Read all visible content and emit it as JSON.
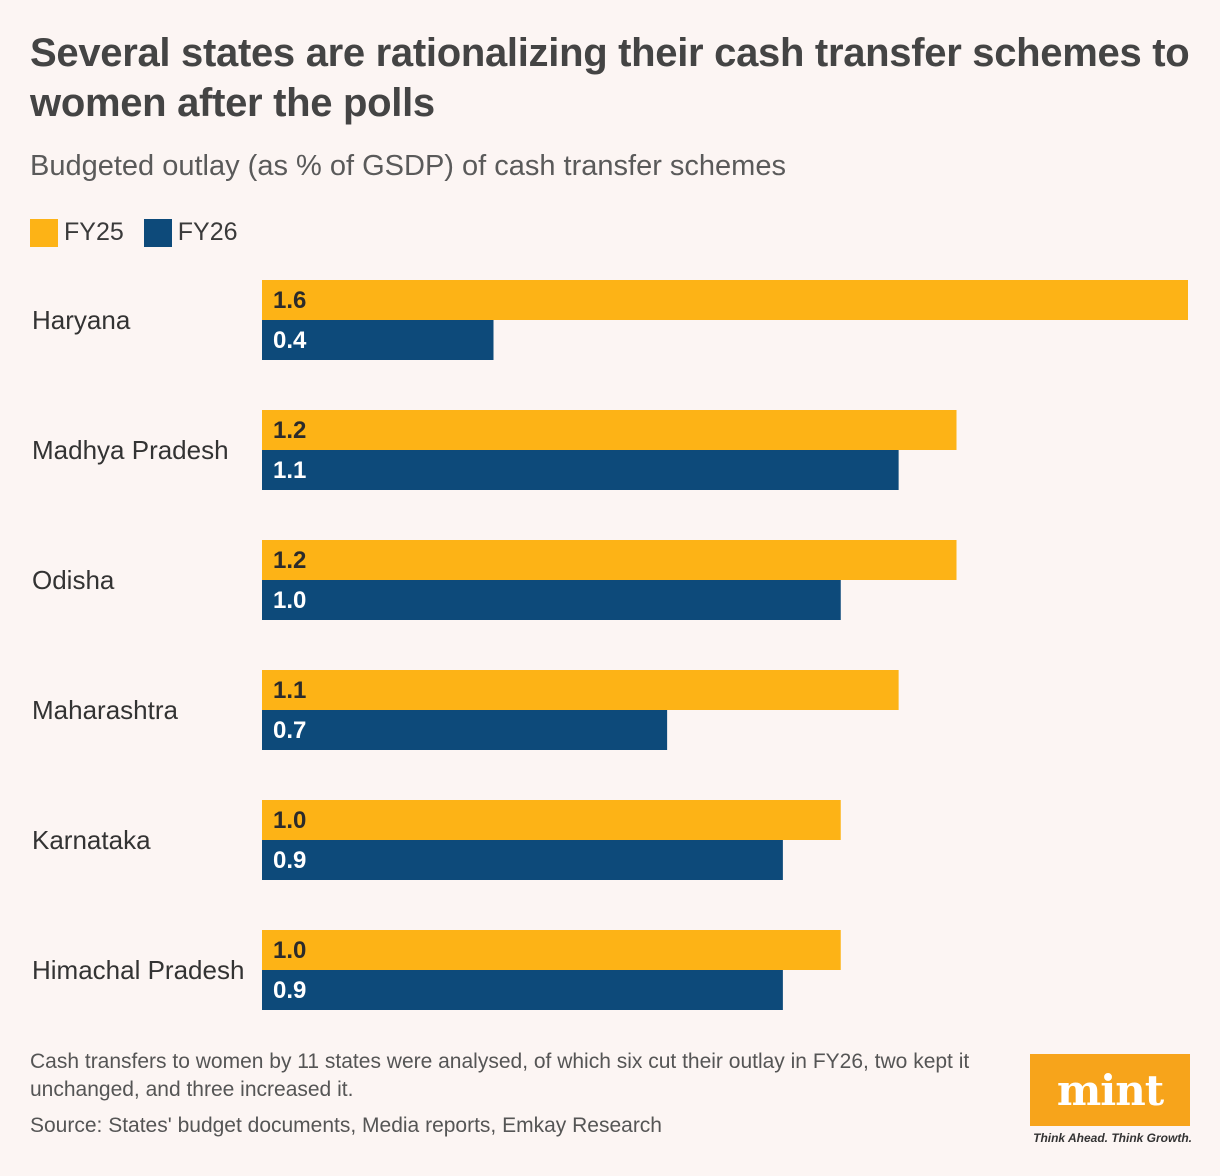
{
  "chart_data": {
    "type": "bar",
    "orientation": "horizontal",
    "title": "Several states are rationalizing their cash transfer schemes to women after the polls",
    "subtitle": "Budgeted outlay (as % of GSDP) of cash transfer schemes",
    "categories": [
      "Haryana",
      "Madhya Pradesh",
      "Odisha",
      "Maharashtra",
      "Karnataka",
      "Himachal Pradesh"
    ],
    "series": [
      {
        "name": "FY25",
        "color": "#fdb316",
        "values": [
          1.6,
          1.2,
          1.2,
          1.1,
          1.0,
          1.0
        ],
        "labels": [
          "1.6",
          "1.2",
          "1.2",
          "1.1",
          "1.0",
          "1.0"
        ]
      },
      {
        "name": "FY26",
        "color": "#0d4a7a",
        "values": [
          0.4,
          1.1,
          1.0,
          0.7,
          0.9,
          0.9
        ],
        "labels": [
          "0.4",
          "1.1",
          "1.0",
          "0.7",
          "0.9",
          "0.9"
        ]
      }
    ],
    "xlim": [
      0,
      1.6
    ],
    "grid": false,
    "legend_position": "top-left"
  },
  "footer": {
    "note": "Cash transfers to women by 11 states were analysed, of which six cut their outlay in FY26, two kept it unchanged, and three increased it.",
    "source": "Source: States' budget documents, Media reports, Emkay Research"
  },
  "logo": {
    "name": "mint",
    "tagline": "Think Ahead. Think Growth."
  }
}
